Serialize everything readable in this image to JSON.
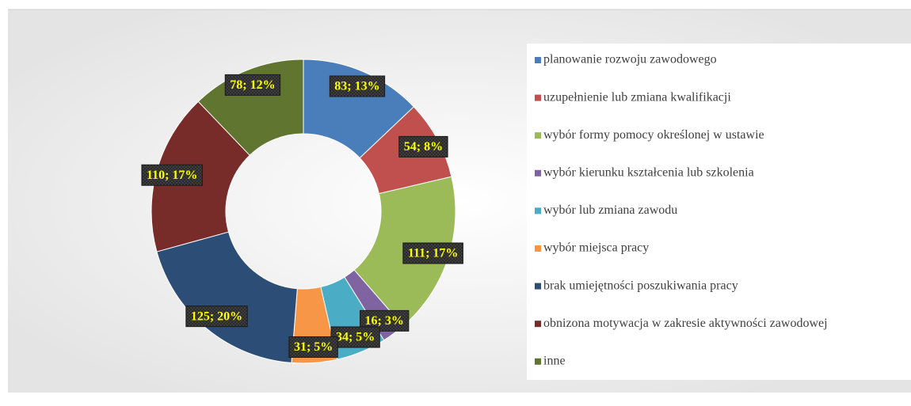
{
  "chart_data": {
    "type": "donut",
    "categories": [
      "planowanie rozwoju zawodowego",
      "uzupełnienie lub zmiana kwalifikacji",
      "wybór formy pomocy określonej w ustawie",
      "wybór kierunku kształcenia lub szkolenia",
      "wybór lub zmiana zawodu",
      "wybór miejsca pracy",
      "brak umiejętności poszukiwania pracy",
      "obnizona motywacja w zakresie aktywności zawodowej",
      "inne"
    ],
    "values": [
      83,
      54,
      111,
      16,
      34,
      31,
      125,
      110,
      78
    ],
    "value_labels": [
      "83; 13%",
      "54; 8%",
      "111; 17%",
      "16; 3%",
      "34; 5%",
      "31; 5%",
      "125; 20%",
      "110; 17%",
      "78; 12%"
    ],
    "colors": [
      "#4a7ebb",
      "#c0504d",
      "#9bbb59",
      "#8064a2",
      "#4bacc6",
      "#f79646",
      "#2c4d75",
      "#772c2a",
      "#5f7530"
    ],
    "legend": "right"
  }
}
